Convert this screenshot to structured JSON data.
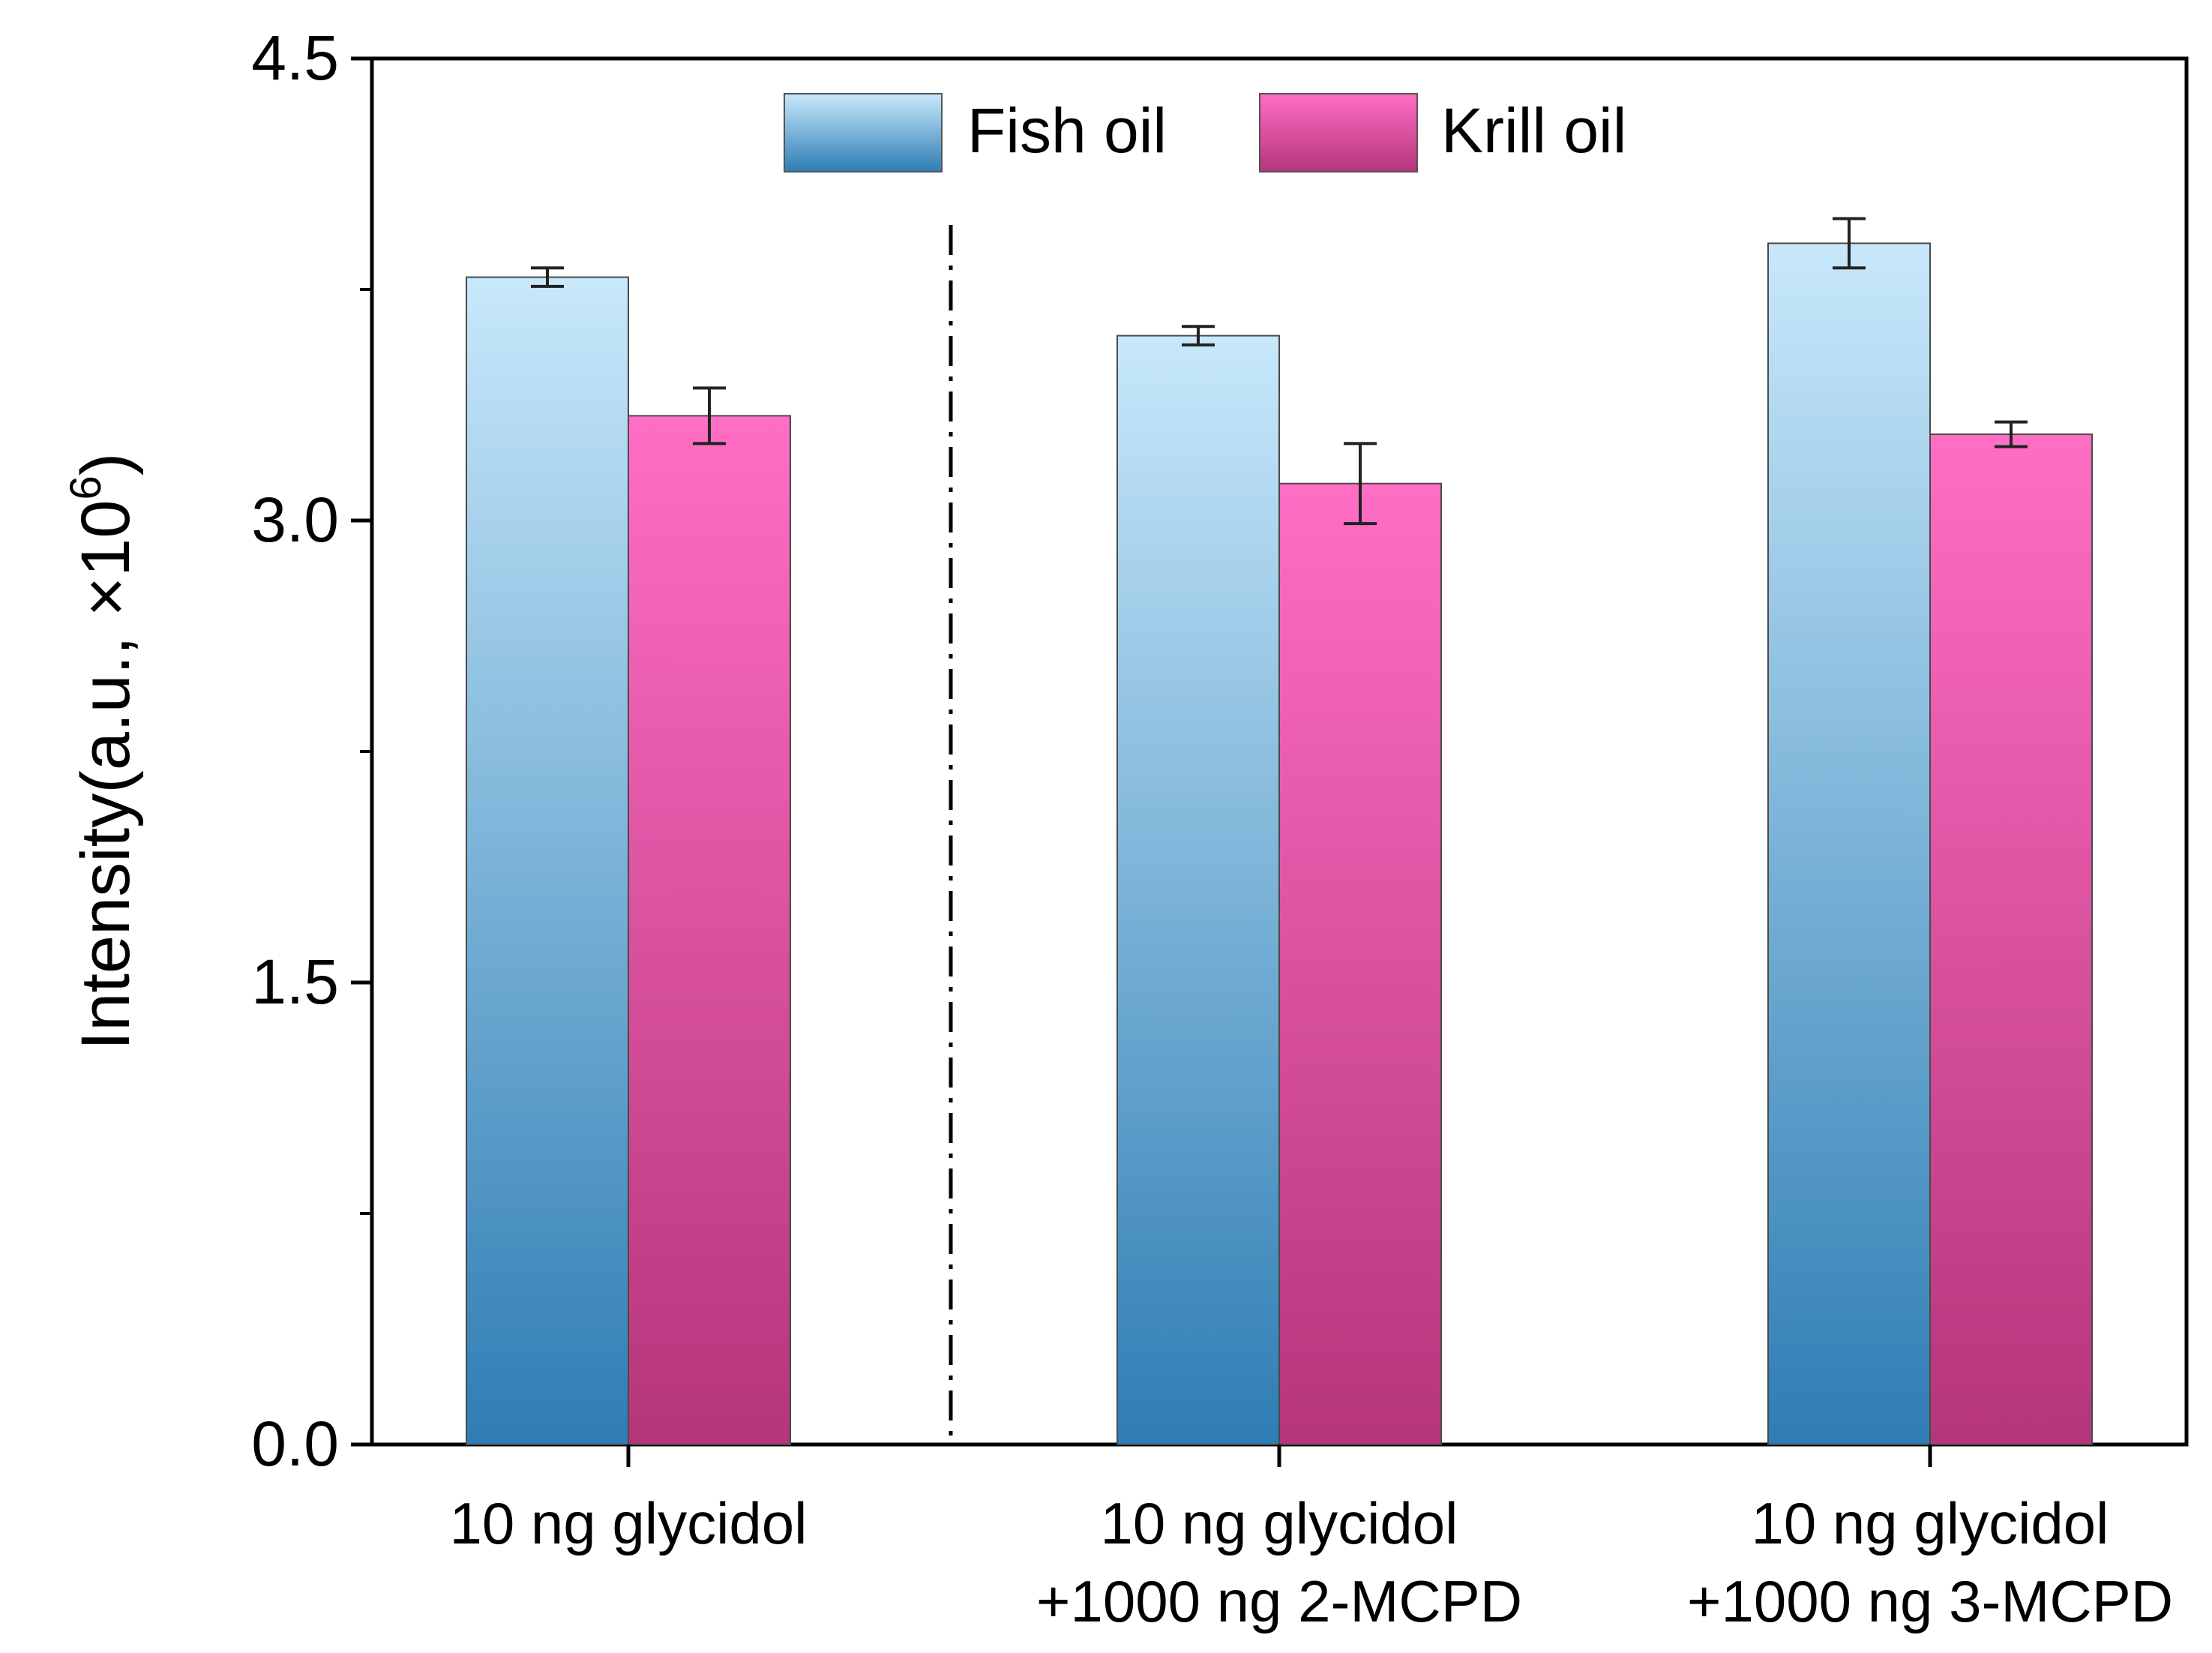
{
  "chart_data": {
    "type": "bar",
    "title": "",
    "xlabel": "",
    "ylabel": "Intensity(a.u., ×10⁶)",
    "ylabel_parts": {
      "main": "Intensity(a.u., ×10",
      "superscript": "6",
      "close": ")"
    },
    "ylim": [
      0,
      4.5
    ],
    "yticks": [
      "0.0",
      "1.5",
      "3.0",
      "4.5"
    ],
    "ytick_values": [
      0,
      1.5,
      3.0,
      4.5
    ],
    "yminor_ticks": [
      0.75,
      2.25,
      3.75
    ],
    "grid": false,
    "legend_position": "top-center",
    "categories": [
      {
        "lines": [
          "10 ng glycidol"
        ]
      },
      {
        "lines": [
          "10 ng glycidol",
          "+1000 ng 2-MCPD"
        ]
      },
      {
        "lines": [
          "10 ng glycidol",
          "+1000 ng 3-MCPD"
        ]
      }
    ],
    "series": [
      {
        "name": "Fish oil",
        "values": [
          3.79,
          3.6,
          3.9
        ],
        "errors": [
          0.03,
          0.03,
          0.08
        ],
        "color_top": "#c8e8fb",
        "color_bottom": "#2e7db4"
      },
      {
        "name": "Krill oil",
        "values": [
          3.34,
          3.12,
          3.28
        ],
        "errors": [
          0.09,
          0.13,
          0.04
        ],
        "color_top": "#ff6ec4",
        "color_bottom": "#b5357a"
      }
    ],
    "annotations": [
      {
        "type": "dash-dot vertical divider",
        "between_categories": [
          0,
          1
        ]
      }
    ]
  }
}
